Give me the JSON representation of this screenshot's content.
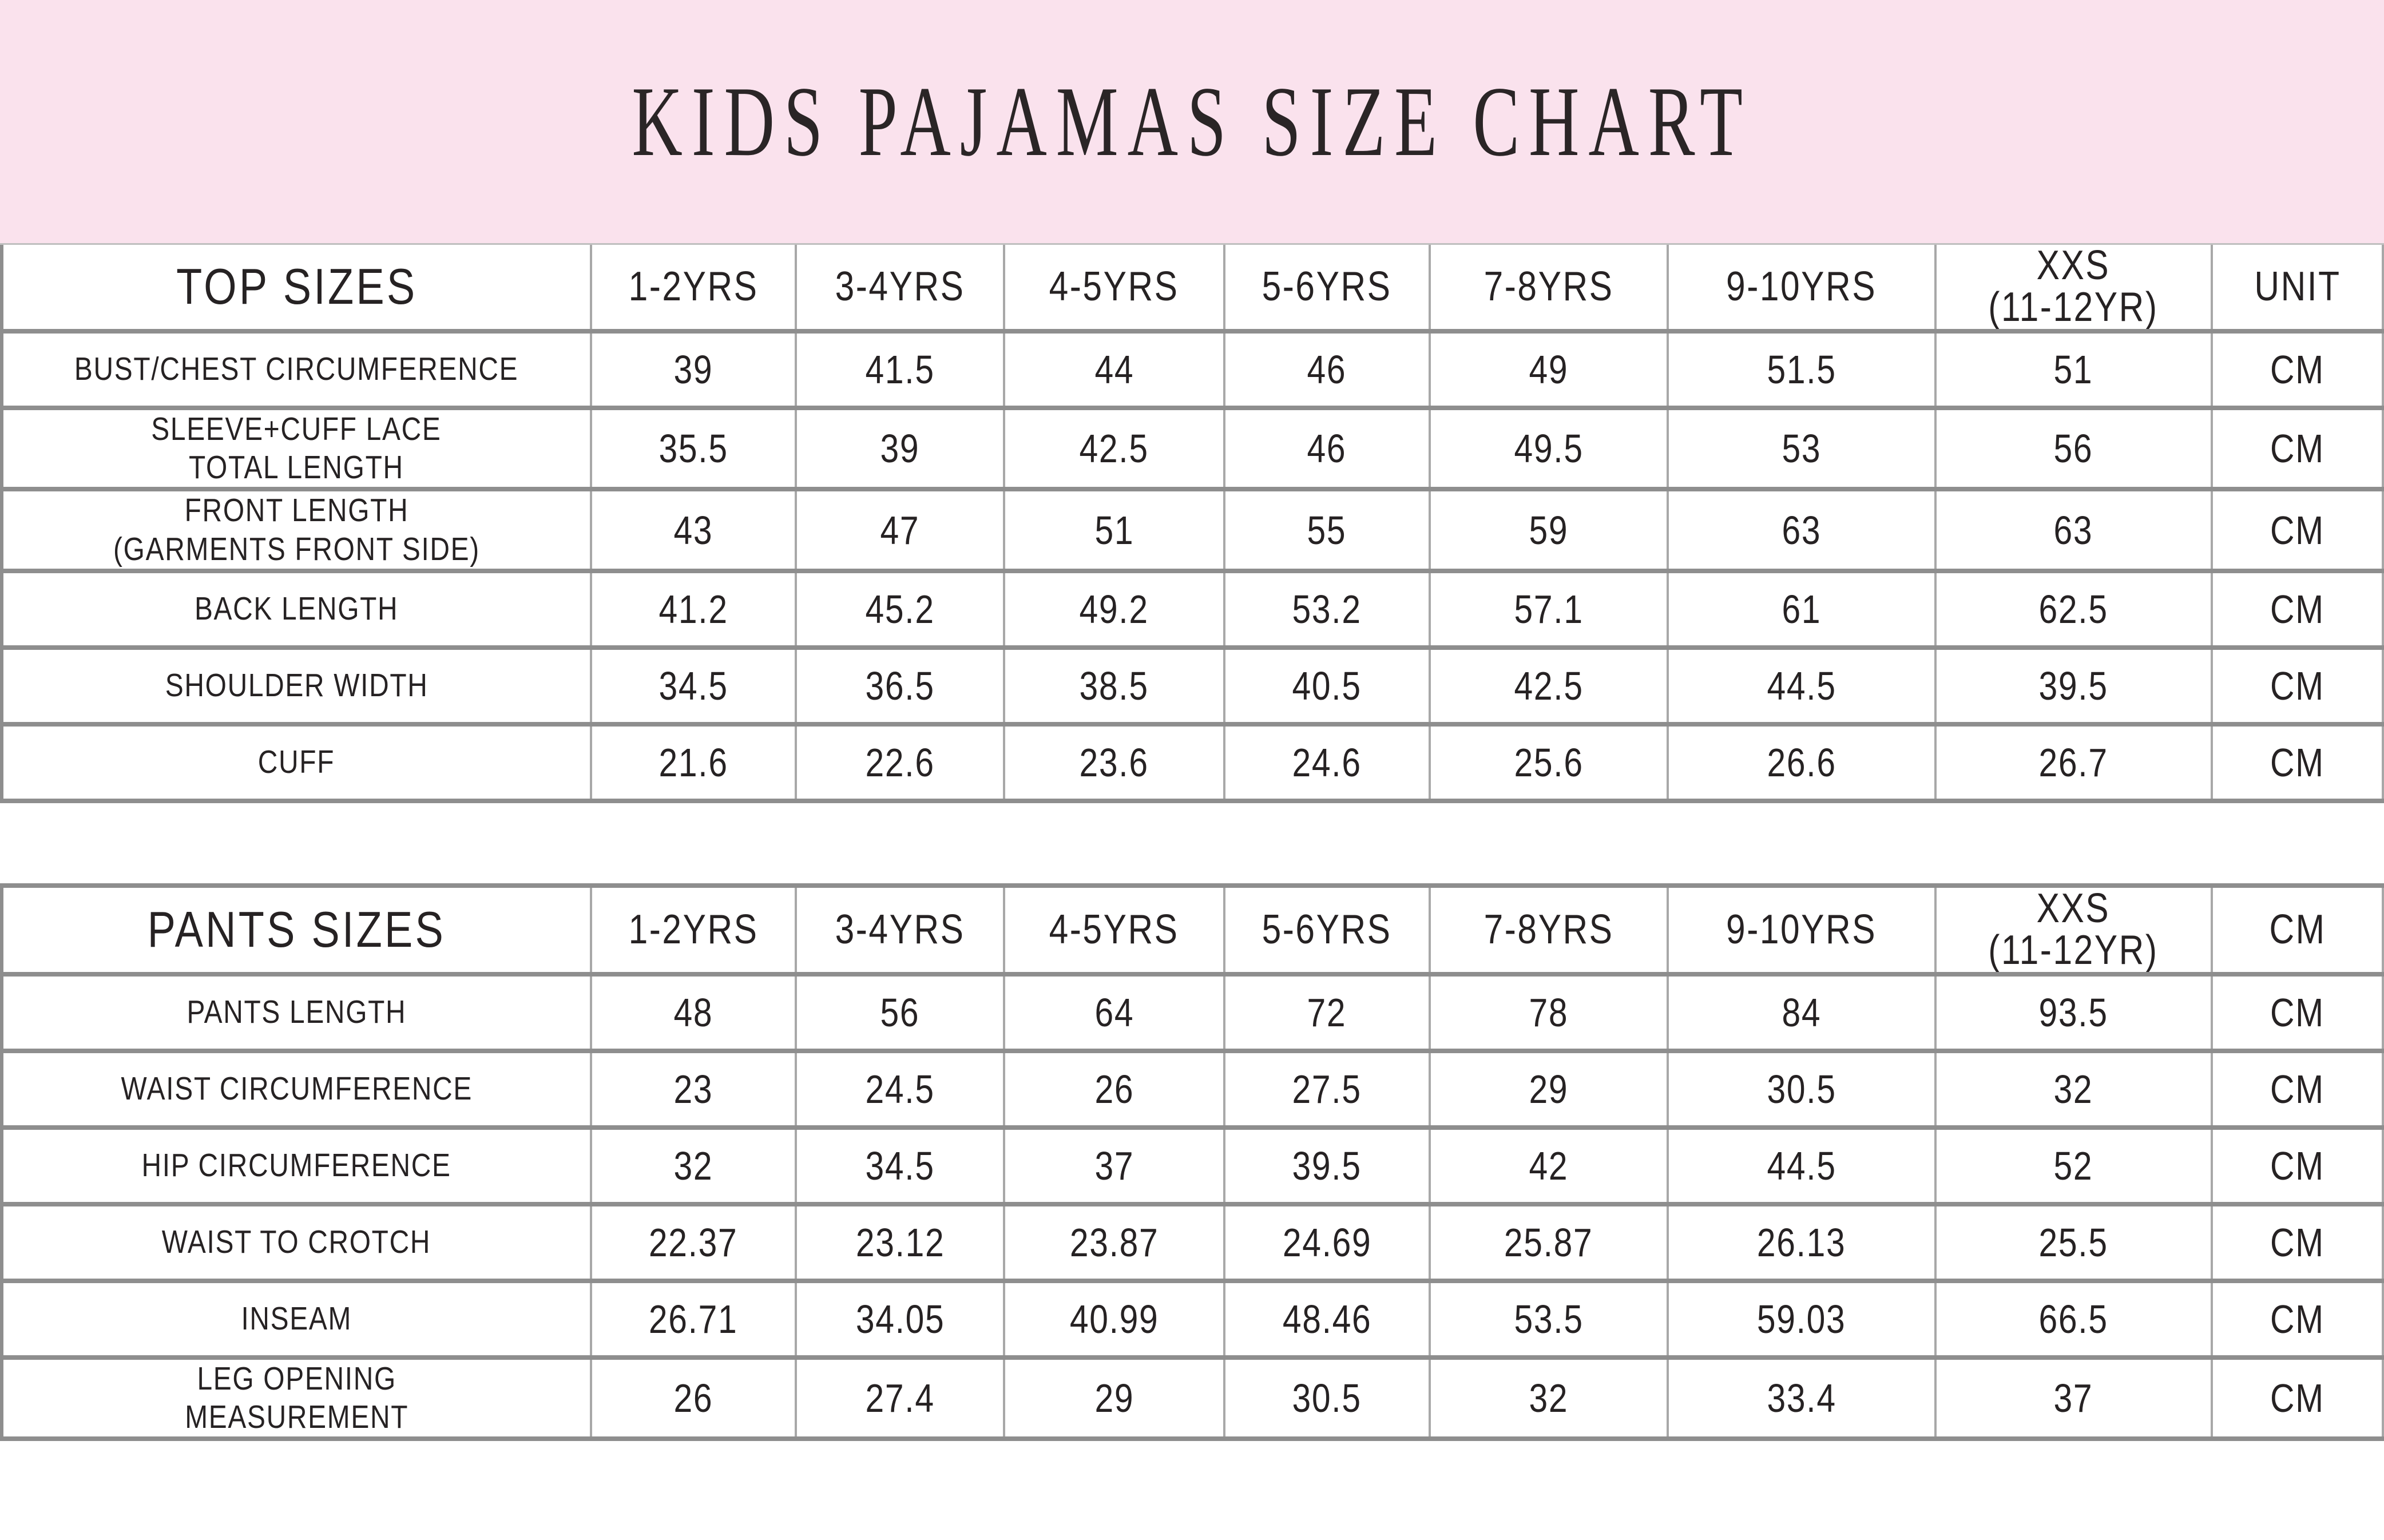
{
  "title": "KIDS PAJAMAS SIZE CHART",
  "colors": {
    "banner_bg": "#fae2ed",
    "text": "#262223",
    "row_line": "#8e8e8e",
    "col_line": "#a8a8a8",
    "table_top_line": "#bfbfbf",
    "background": "#ffffff"
  },
  "tables": [
    {
      "name": "TOP SIZES",
      "columns": [
        "1-2YRS",
        "3-4YRS",
        "4-5YRS",
        "5-6YRS",
        "7-8YRS",
        "9-10YRS",
        "XXS\n(11-12YR)",
        "UNIT"
      ],
      "rows": [
        {
          "label": "BUST/CHEST CIRCUMFERENCE",
          "values": [
            "39",
            "41.5",
            "44",
            "46",
            "49",
            "51.5",
            "51",
            "CM"
          ]
        },
        {
          "label": "SLEEVE+CUFF LACE\nTOTAL LENGTH",
          "values": [
            "35.5",
            "39",
            "42.5",
            "46",
            "49.5",
            "53",
            "56",
            "CM"
          ]
        },
        {
          "label": "FRONT LENGTH\n(GARMENTS FRONT SIDE)",
          "values": [
            "43",
            "47",
            "51",
            "55",
            "59",
            "63",
            "63",
            "CM"
          ]
        },
        {
          "label": "BACK LENGTH",
          "values": [
            "41.2",
            "45.2",
            "49.2",
            "53.2",
            "57.1",
            "61",
            "62.5",
            "CM"
          ]
        },
        {
          "label": "SHOULDER WIDTH",
          "values": [
            "34.5",
            "36.5",
            "38.5",
            "40.5",
            "42.5",
            "44.5",
            "39.5",
            "CM"
          ]
        },
        {
          "label": "CUFF",
          "values": [
            "21.6",
            "22.6",
            "23.6",
            "24.6",
            "25.6",
            "26.6",
            "26.7",
            "CM"
          ]
        }
      ]
    },
    {
      "name": "PANTS SIZES",
      "columns": [
        "1-2YRS",
        "3-4YRS",
        "4-5YRS",
        "5-6YRS",
        "7-8YRS",
        "9-10YRS",
        "XXS\n(11-12YR)",
        "CM"
      ],
      "rows": [
        {
          "label": "PANTS LENGTH",
          "values": [
            "48",
            "56",
            "64",
            "72",
            "78",
            "84",
            "93.5",
            "CM"
          ]
        },
        {
          "label": "WAIST CIRCUMFERENCE",
          "values": [
            "23",
            "24.5",
            "26",
            "27.5",
            "29",
            "30.5",
            "32",
            "CM"
          ]
        },
        {
          "label": "HIP CIRCUMFERENCE",
          "values": [
            "32",
            "34.5",
            "37",
            "39.5",
            "42",
            "44.5",
            "52",
            "CM"
          ]
        },
        {
          "label": "WAIST TO CROTCH",
          "values": [
            "22.37",
            "23.12",
            "23.87",
            "24.69",
            "25.87",
            "26.13",
            "25.5",
            "CM"
          ]
        },
        {
          "label": "INSEAM",
          "values": [
            "26.71",
            "34.05",
            "40.99",
            "48.46",
            "53.5",
            "59.03",
            "66.5",
            "CM"
          ]
        },
        {
          "label": "LEG OPENING\nMEASUREMENT",
          "values": [
            "26",
            "27.4",
            "29",
            "30.5",
            "32",
            "33.4",
            "37",
            "CM"
          ]
        }
      ]
    }
  ]
}
